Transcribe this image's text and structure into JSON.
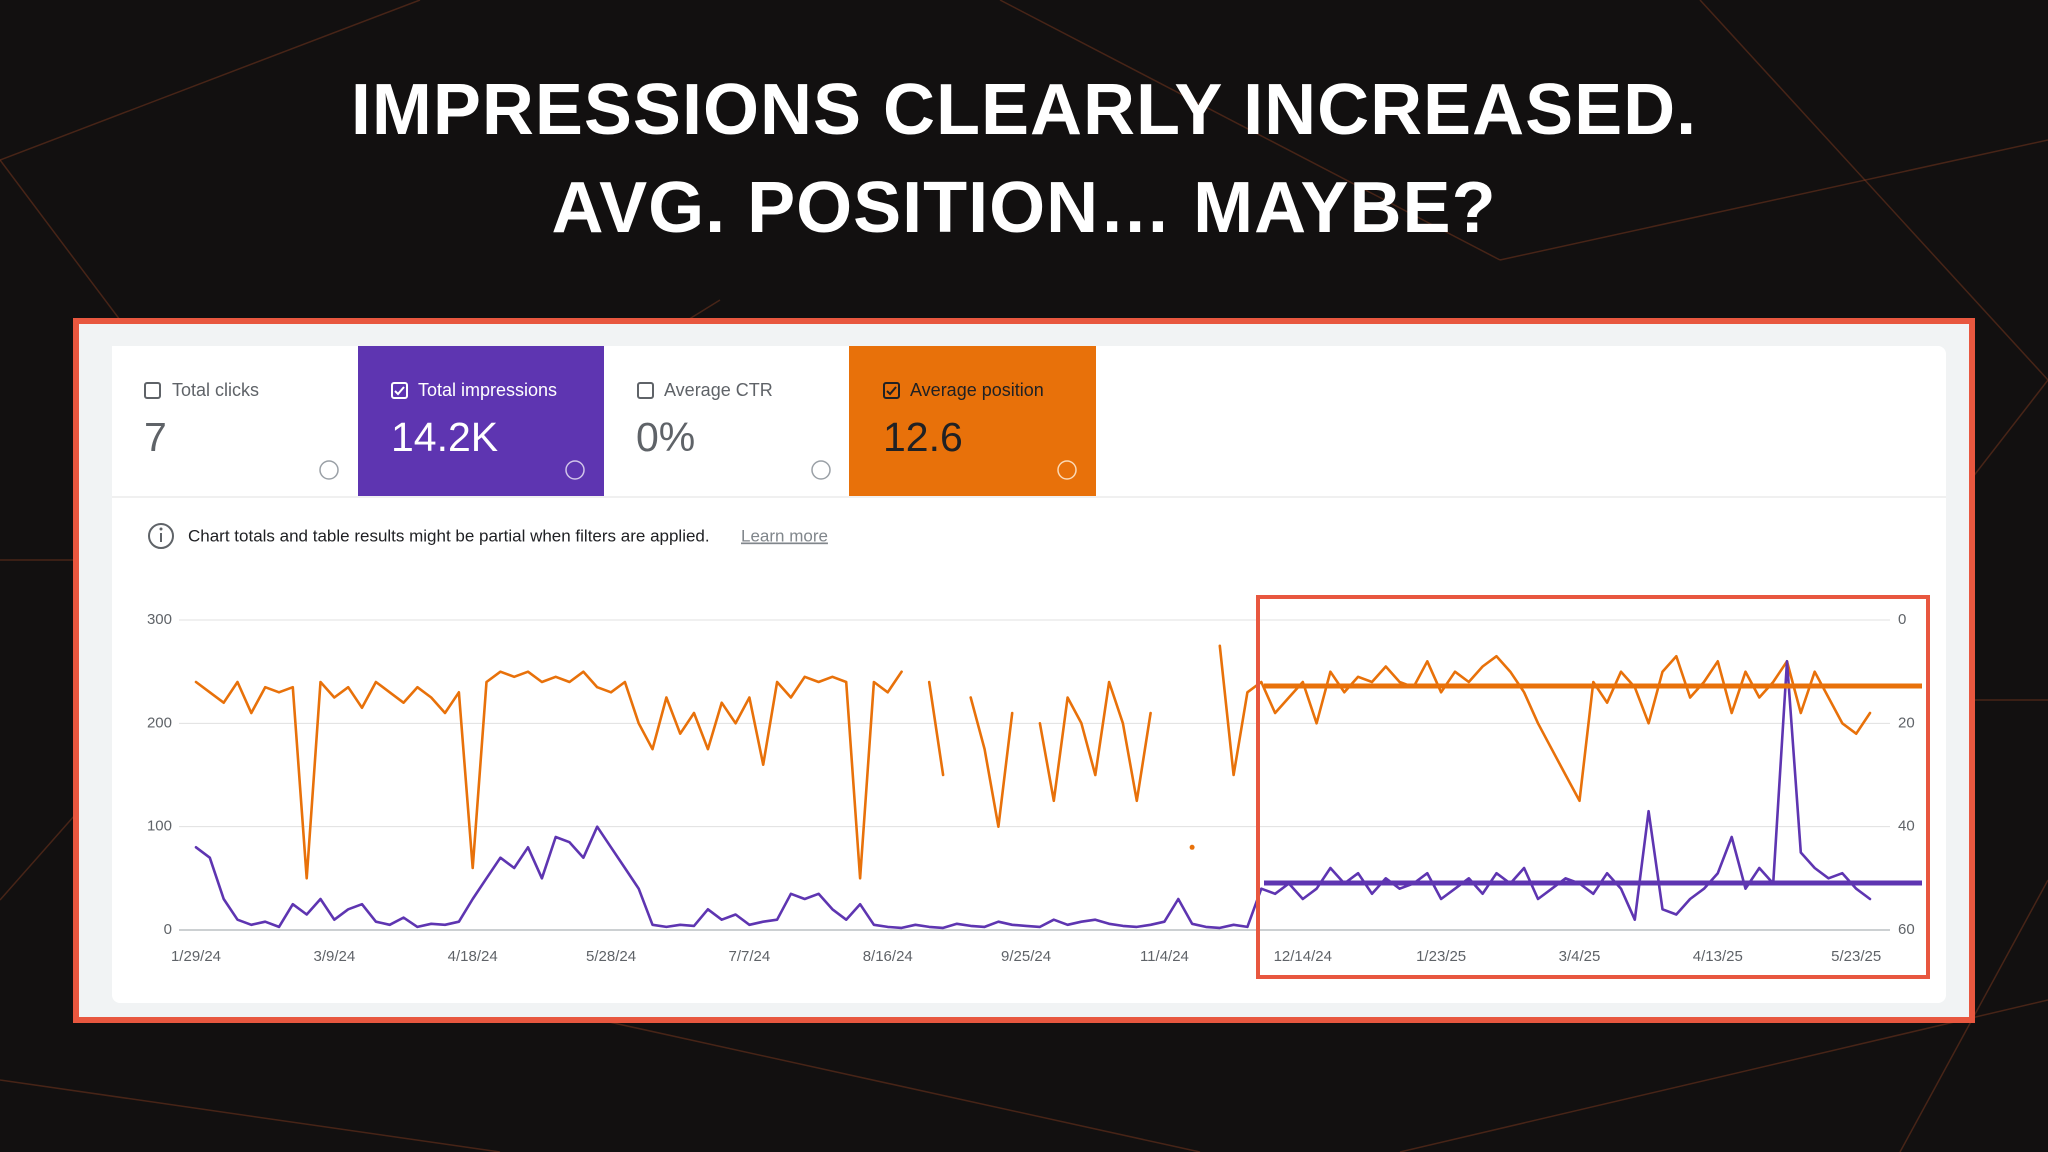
{
  "header": {
    "title_lines": [
      "IMPRESSIONS CLEARLY INCREASED.",
      "AVG. POSITION… MAYBE?"
    ]
  },
  "metrics": [
    {
      "label": "Total clicks",
      "value": "7"
    },
    {
      "value": "14.2K"
    },
    {
      "label": "Average CTR",
      "value": "0%"
    },
    {
      "value": "12.6"
    }
  ],
  "notice": {
    "text": "Chart totals and table results might be partial when filters are applied.",
    "link": "Learn more"
  },
  "chart_data": {
    "type": "line",
    "categories": [
      "1/29/24",
      null,
      null,
      null,
      null,
      null,
      null,
      null,
      null,
      null,
      "3/9/24",
      null,
      null,
      null,
      null,
      null,
      null,
      null,
      null,
      null,
      "4/18/24",
      null,
      null,
      null,
      null,
      null,
      null,
      null,
      null,
      null,
      "5/28/24",
      null,
      null,
      null,
      null,
      null,
      null,
      null,
      null,
      null,
      "7/7/24",
      null,
      null,
      null,
      null,
      null,
      null,
      null,
      null,
      null,
      "8/16/24",
      null,
      null,
      null,
      null,
      null,
      null,
      null,
      null,
      null,
      "9/25/24",
      null,
      null,
      null,
      null,
      null,
      null,
      null,
      null,
      null,
      "11/4/24",
      null,
      null,
      null,
      null,
      null,
      null,
      null,
      null,
      null,
      "12/14/24",
      null,
      null,
      null,
      null,
      null,
      null,
      null,
      null,
      null,
      "1/23/25",
      null,
      null,
      null,
      null,
      null,
      null,
      null,
      null,
      null,
      "3/4/25",
      null,
      null,
      null,
      null,
      null,
      null,
      null,
      null,
      null,
      "4/13/25",
      null,
      null,
      null,
      null,
      null,
      null,
      null,
      null,
      null,
      "5/23/25",
      null
    ],
    "series": [
      {
        "name": "Total impressions",
        "color": "#5e35b1",
        "values": [
          80,
          70,
          30,
          10,
          5,
          8,
          3,
          25,
          15,
          30,
          10,
          20,
          25,
          8,
          5,
          12,
          3,
          6,
          5,
          8,
          30,
          50,
          70,
          60,
          80,
          50,
          90,
          85,
          70,
          100,
          80,
          60,
          40,
          5,
          3,
          5,
          4,
          20,
          10,
          15,
          5,
          8,
          10,
          35,
          30,
          35,
          20,
          10,
          25,
          5,
          3,
          2,
          5,
          3,
          2,
          6,
          4,
          3,
          8,
          5,
          4,
          3,
          10,
          5,
          8,
          10,
          6,
          4,
          3,
          5,
          8,
          30,
          6,
          3,
          2,
          5,
          3,
          40,
          35,
          45,
          30,
          40,
          60,
          45,
          55,
          35,
          50,
          40,
          45,
          55,
          30,
          40,
          50,
          35,
          55,
          45,
          60,
          30,
          40,
          50,
          45,
          35,
          55,
          40,
          10,
          115,
          20,
          15,
          30,
          40,
          55,
          90,
          40,
          60,
          45,
          260,
          75,
          60,
          50,
          55,
          40,
          30
        ]
      },
      {
        "name": "Average position",
        "color": "#e8710a",
        "axis": "y2",
        "values": [
          12,
          14,
          16,
          12,
          18,
          13,
          14,
          13,
          50,
          12,
          15,
          13,
          17,
          12,
          14,
          16,
          13,
          15,
          18,
          14,
          48,
          12,
          10,
          11,
          10,
          12,
          11,
          12,
          10,
          13,
          14,
          12,
          20,
          25,
          15,
          22,
          18,
          25,
          16,
          20,
          15,
          28,
          12,
          15,
          11,
          12,
          11,
          12,
          50,
          12,
          14,
          10,
          null,
          12,
          30,
          null,
          15,
          25,
          40,
          18,
          null,
          20,
          35,
          15,
          20,
          30,
          12,
          20,
          35,
          18,
          null,
          null,
          44,
          null,
          5,
          30,
          14,
          12,
          18,
          15,
          12,
          20,
          10,
          14,
          11,
          12,
          9,
          12,
          13,
          8,
          14,
          10,
          12,
          9,
          7,
          10,
          14,
          20,
          25,
          30,
          35,
          12,
          16,
          10,
          13,
          20,
          10,
          7,
          15,
          12,
          8,
          18,
          10,
          15,
          12,
          8,
          18,
          10,
          15,
          20,
          22,
          18
        ]
      }
    ],
    "ylim": [
      0,
      300
    ],
    "yticks": [
      0,
      100,
      200,
      300
    ],
    "y2lim": [
      60,
      0
    ],
    "y2ticks": [
      0,
      20,
      40,
      60
    ],
    "grid": true
  }
}
